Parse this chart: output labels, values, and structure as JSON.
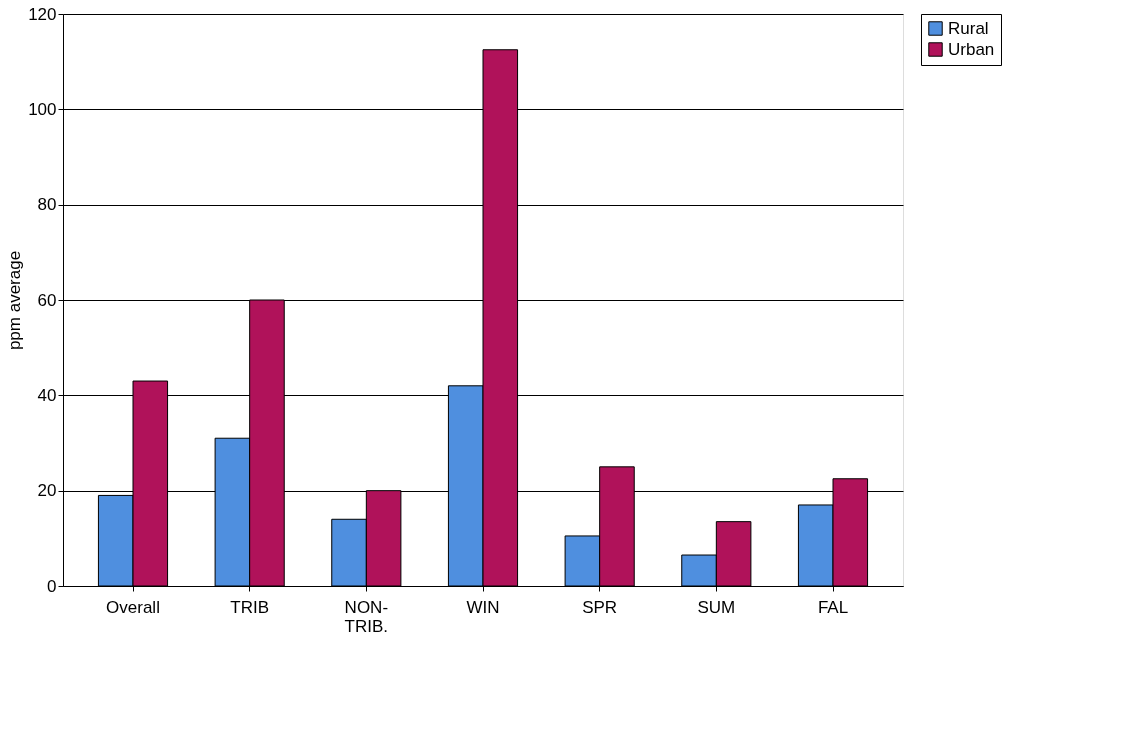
{
  "chart_data": {
    "type": "bar",
    "ylabel": "ppm average",
    "categories": [
      "Overall",
      "TRIB",
      "NON- TRIB.",
      "WIN",
      "SPR",
      "SUM",
      "FAL"
    ],
    "series": [
      {
        "name": "Rural",
        "color": "#4f8fdf",
        "values": [
          19,
          31,
          14,
          42,
          10.5,
          6.5,
          17
        ]
      },
      {
        "name": "Urban",
        "color": "#b0125a",
        "values": [
          43,
          60,
          20,
          112.5,
          25,
          13.5,
          22.5
        ]
      }
    ],
    "ylim": [
      0,
      120
    ],
    "yticks": [
      0,
      20,
      40,
      60,
      80,
      100,
      120
    ],
    "grid": "y",
    "legend": "right"
  }
}
